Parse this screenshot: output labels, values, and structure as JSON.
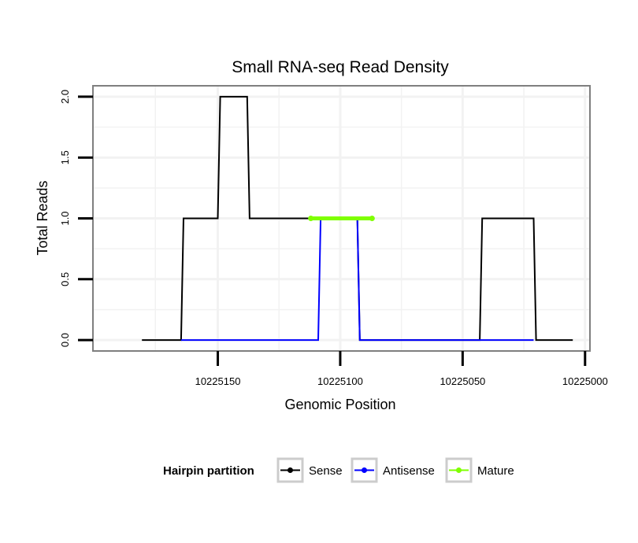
{
  "chart_data": {
    "type": "line",
    "title": "Small RNA-seq Read Density",
    "xlabel": "Genomic Position",
    "ylabel": "Total Reads",
    "x_reversed": true,
    "xlim": [
      10225201,
      10224998
    ],
    "ylim": [
      -0.09,
      2.09
    ],
    "x_ticks": [
      10225150,
      10225100,
      10225050,
      10225000
    ],
    "x_tick_labels": [
      "10225150",
      "10225100",
      "10225050",
      "10225000"
    ],
    "y_ticks": [
      0,
      0.5,
      1,
      1.5,
      2
    ],
    "y_tick_labels": [
      "0.0",
      "0.5",
      "1.0",
      "1.5",
      "2.0"
    ],
    "grid": true,
    "legend": {
      "title": "Hairpin partition",
      "position": "bottom",
      "entries": [
        {
          "label": "Sense",
          "color": "#000000"
        },
        {
          "label": "Antisense",
          "color": "#0000ff"
        },
        {
          "label": "Mature",
          "color": "#7fff00"
        }
      ]
    },
    "series": [
      {
        "name": "Sense",
        "color": "#000000",
        "x": [
          10225181,
          10225165,
          10225164,
          10225150,
          10225149,
          10225138,
          10225137,
          10225134,
          10225113,
          10225112,
          10225093,
          10225092,
          10225043,
          10225042,
          10225021,
          10225020,
          10225005
        ],
        "y": [
          0,
          0,
          1,
          1,
          2,
          2,
          1,
          1,
          1,
          1,
          1,
          0,
          0,
          1,
          1,
          0,
          0
        ]
      },
      {
        "name": "Antisense",
        "color": "#0000ff",
        "x": [
          10225165,
          10225109,
          10225108,
          10225093,
          10225092,
          10225043,
          10225042,
          10225021
        ],
        "y": [
          0,
          0,
          1,
          1,
          0,
          0,
          0,
          0
        ]
      },
      {
        "name": "Mature",
        "color": "#7fff00",
        "x": [
          10225112,
          10225087
        ],
        "y": [
          1,
          1
        ]
      }
    ]
  }
}
